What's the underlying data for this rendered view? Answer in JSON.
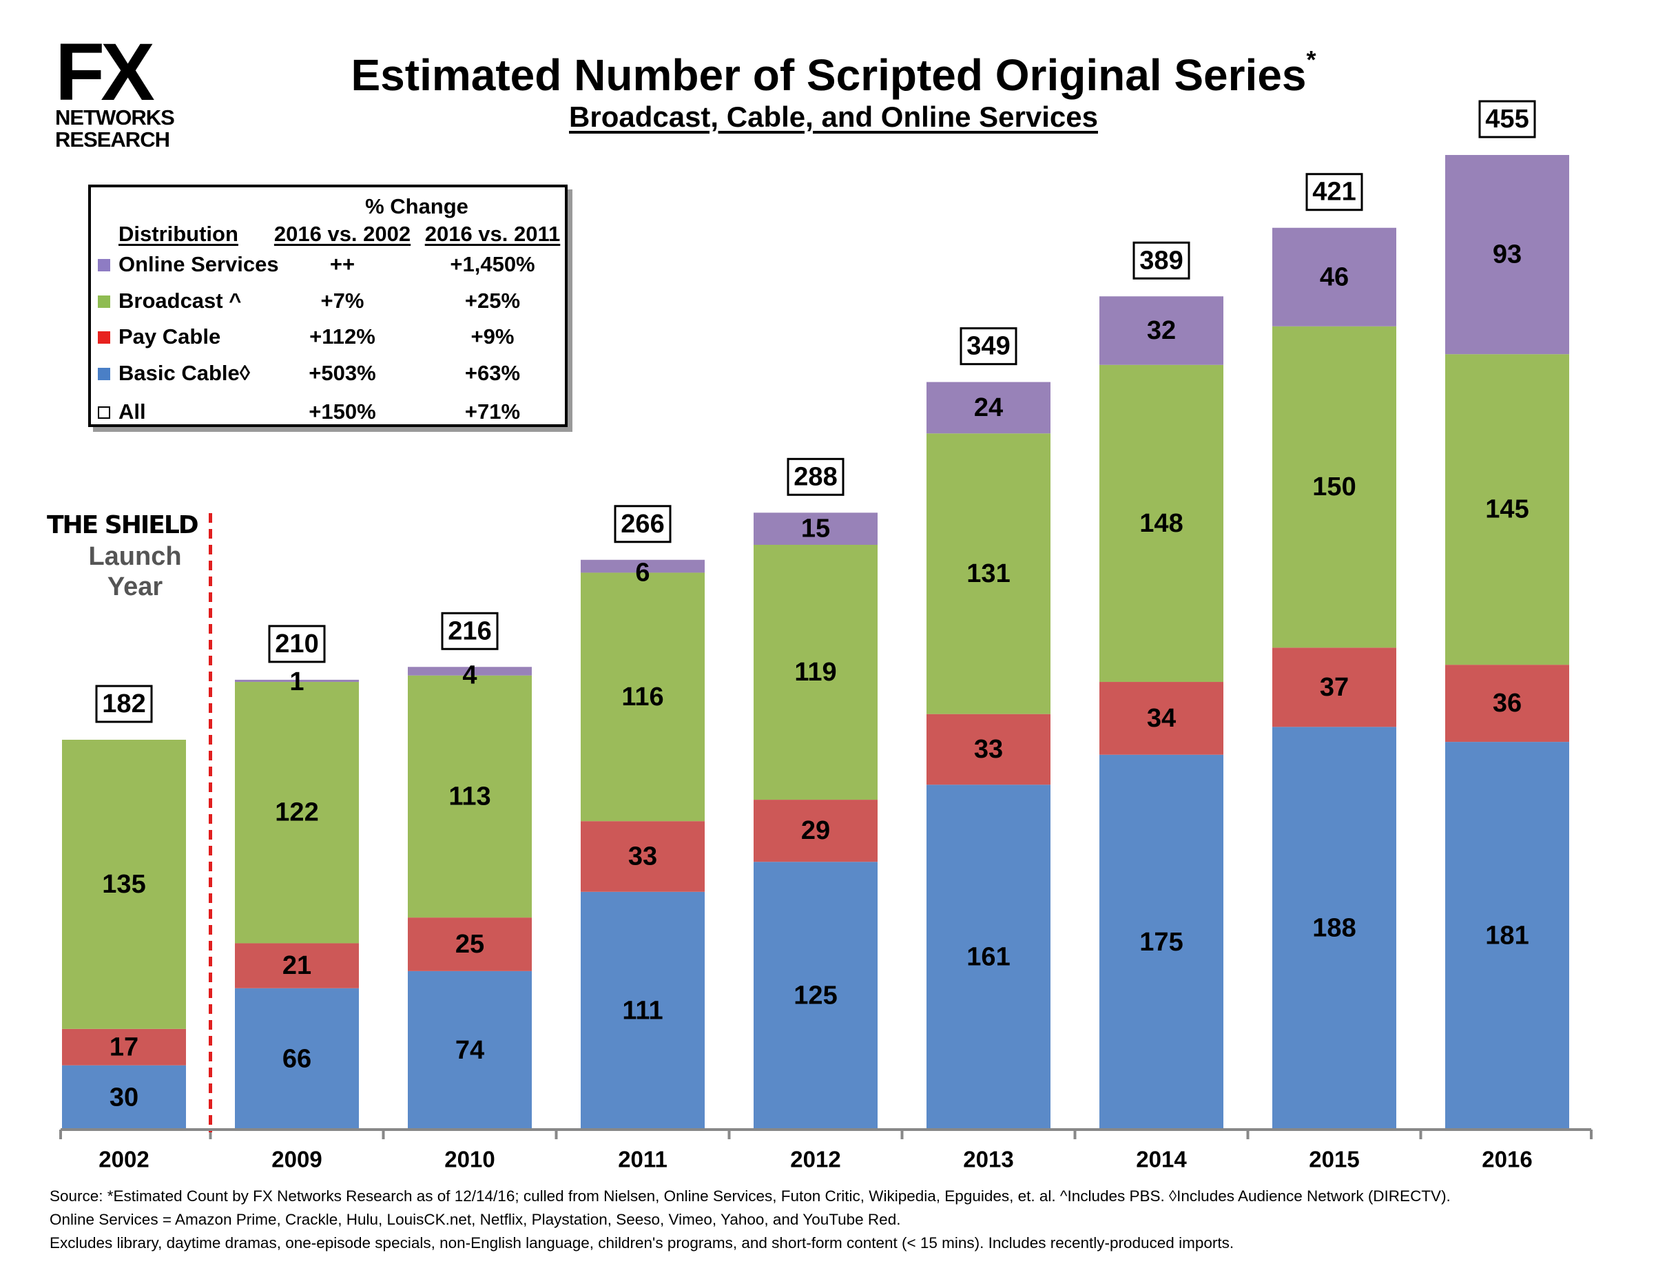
{
  "logo": {
    "mark": "FX",
    "line1": "NETWORKS",
    "line2": "RESEARCH"
  },
  "title": "Estimated Number of Scripted Original Series",
  "title_mark": "*",
  "subtitle": "Broadcast, Cable, and Online Services",
  "table": {
    "header_group": "% Change",
    "col_distribution": "Distribution",
    "col_a": "2016 vs. 2002",
    "col_b": "2016 vs. 2011",
    "rows": [
      {
        "label": "Online Services",
        "a": "++",
        "b": "+1,450%",
        "color": "#8e7cc3"
      },
      {
        "label": "Broadcast ^",
        "a": "+7%",
        "b": "+25%",
        "color": "#8fbc52"
      },
      {
        "label": "Pay Cable",
        "a": "+112%",
        "b": "+9%",
        "color": "#e8221e"
      },
      {
        "label": "Basic Cable◊",
        "a": "+503%",
        "b": "+63%",
        "color": "#4a7fc6"
      },
      {
        "label": "All",
        "a": "+150%",
        "b": "+71%",
        "color": "#ffffff"
      }
    ]
  },
  "annotation": {
    "brand": "THE SHIELD",
    "line1": "Launch",
    "line2": "Year"
  },
  "chart_data": {
    "type": "bar",
    "stacked": true,
    "categories": [
      "2002",
      "2009",
      "2010",
      "2011",
      "2012",
      "2013",
      "2014",
      "2015",
      "2016"
    ],
    "series": [
      {
        "name": "Basic Cable",
        "color": "#5b8ac8",
        "values": [
          30,
          66,
          74,
          111,
          125,
          161,
          175,
          188,
          181
        ]
      },
      {
        "name": "Pay Cable",
        "color": "#cd5857",
        "values": [
          17,
          21,
          25,
          33,
          29,
          33,
          34,
          37,
          36
        ]
      },
      {
        "name": "Broadcast",
        "color": "#9bbb5a",
        "values": [
          135,
          122,
          113,
          116,
          119,
          131,
          148,
          150,
          145
        ]
      },
      {
        "name": "Online Services",
        "color": "#9882b8",
        "values": [
          0,
          1,
          4,
          6,
          15,
          24,
          32,
          46,
          93
        ]
      }
    ],
    "totals": [
      182,
      210,
      216,
      266,
      288,
      349,
      389,
      421,
      455
    ],
    "ylim": [
      0,
      455
    ],
    "grid": false,
    "divider_after_category": "2002"
  },
  "source_lines": [
    "Source:  *Estimated Count by FX Networks Research as of 12/14/16; culled from Nielsen, Online Services, Futon Critic, Wikipedia, Epguides, et. al.  ^Includes PBS.  ◊Includes Audience Network (DIRECTV).",
    "Online Services = Amazon Prime, Crackle, Hulu, LouisCK.net, Netflix, Playstation, Seeso, Vimeo, Yahoo, and YouTube Red.",
    "Excludes library, daytime dramas, one-episode specials, non-English language, children's programs, and short-form content (< 15 mins).  Includes recently-produced imports."
  ]
}
